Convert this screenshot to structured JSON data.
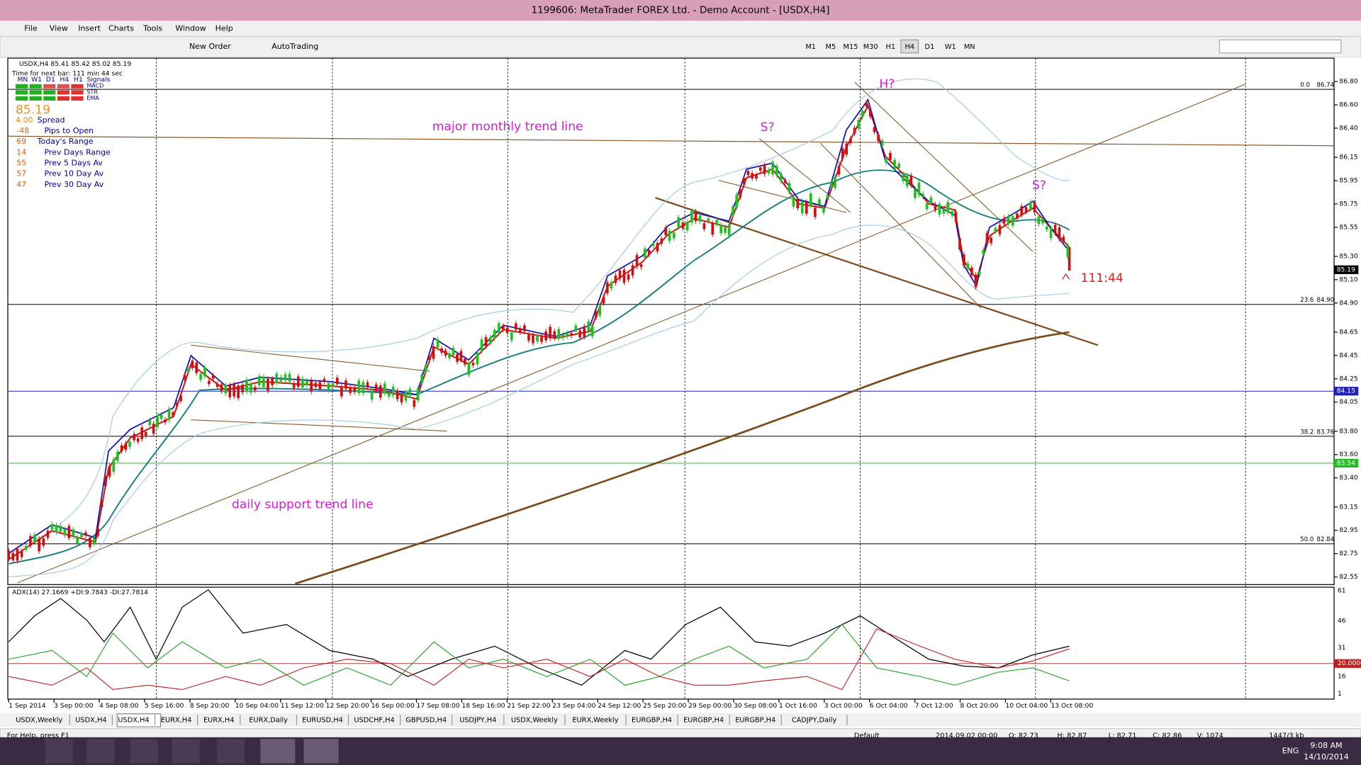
{
  "window_title": "1199606: MetaTrader FOREX Ltd. - Demo Account - [USDX,H4]",
  "menu": [
    "File",
    "View",
    "Insert",
    "Charts",
    "Tools",
    "Window",
    "Help"
  ],
  "toolbar": {
    "buttons": [
      "New Order",
      "AutoTrading"
    ],
    "timeframes": [
      "M1",
      "M5",
      "M15",
      "M30",
      "H1",
      "H4",
      "D1",
      "W1",
      "MN"
    ]
  },
  "chart": {
    "header": "USDX,H4  85.41 85.42 85.02 85.19",
    "timer": "Time for next bar: 111 min 44 sec",
    "signals": {
      "timeframes": [
        "MN",
        "W1",
        "D1",
        "H4",
        "H1"
      ],
      "title": "Signals",
      "indicators": [
        "MACD",
        "STR",
        "EMA"
      ]
    },
    "price": "85.19",
    "spread": {
      "value": "4.00",
      "label": "Spread"
    },
    "stats": [
      {
        "value": "-48",
        "label": "Pips to Open"
      },
      {
        "value": "69",
        "label": "Today's Range"
      },
      {
        "value": "14",
        "label": "Prev Days Range"
      },
      {
        "value": "55",
        "label": "Prev 5 Days Av"
      },
      {
        "value": "57",
        "label": "Prev 10 Day Av"
      },
      {
        "value": "47",
        "label": "Prev 30 Day Av"
      }
    ],
    "annotations": [
      "major monthly trend line",
      "S?",
      "H?",
      "S?",
      "daily support trend line",
      "111:44"
    ],
    "price_axis": [
      "86.80",
      "86.60",
      "86.40",
      "86.15",
      "85.95",
      "85.75",
      "85.55",
      "85.30",
      "85.10",
      "84.90",
      "84.65",
      "84.45",
      "84.25",
      "84.05",
      "83.80",
      "83.60",
      "83.40",
      "83.15",
      "82.95",
      "82.75",
      "82.55"
    ],
    "price_markers": [
      "85.19",
      "84.15",
      "83.54"
    ],
    "fib_levels": [
      {
        "level": "0.0",
        "price": "86.74"
      },
      {
        "level": "23.6",
        "price": "84.90"
      },
      {
        "level": "38.2",
        "price": "83.76"
      },
      {
        "level": "50.0",
        "price": "82.84"
      }
    ],
    "time_axis": [
      "1 Sep 2014",
      "3 Sep 00:00",
      "4 Sep 08:00",
      "5 Sep 16:00",
      "8 Sep 20:00",
      "10 Sep 04:00",
      "11 Sep 12:00",
      "12 Sep 20:00",
      "16 Sep 00:00",
      "17 Sep 08:00",
      "18 Sep 16:00",
      "21 Sep 22:00",
      "23 Sep 04:00",
      "24 Sep 12:00",
      "25 Sep 20:00",
      "29 Sep 00:00",
      "30 Sep 08:00",
      "1 Oct 16:00",
      "3 Oct 00:00",
      "6 Oct 04:00",
      "7 Oct 12:00",
      "8 Oct 20:00",
      "10 Oct 04:00",
      "13 Oct 08:00"
    ]
  },
  "indicator": {
    "header": "ADX(14) 27.1669 +DI:9.7843 -DI:27.7814",
    "axis": [
      "61",
      "46",
      "31",
      "20.0000",
      "16",
      "1"
    ]
  },
  "tabs": [
    "USDX,Weekly",
    "USDX,H4",
    "USDX,H4",
    "EURX,H4",
    "EURX,H4",
    "EURX,Daily",
    "EURUSD,H4",
    "USDCHF,H4",
    "GBPUSD,H4",
    "USDJPY,H4",
    "USDX,Weekly",
    "EURX,Weekly",
    "EURGBP,H4",
    "EURGBP,H4",
    "EURGBP,H4",
    "CADJPY,Daily"
  ],
  "status_bar": [
    "For Help, press F1",
    "Default",
    "2014.09.02 00:00",
    "O: 82.73",
    "H: 82.87",
    "L: 82.71",
    "C: 82.86",
    "V: 1074",
    "1447/3 kb"
  ],
  "taskbar": {
    "language": "ENG",
    "time": "9:08 AM",
    "date": "14/10/2014"
  }
}
